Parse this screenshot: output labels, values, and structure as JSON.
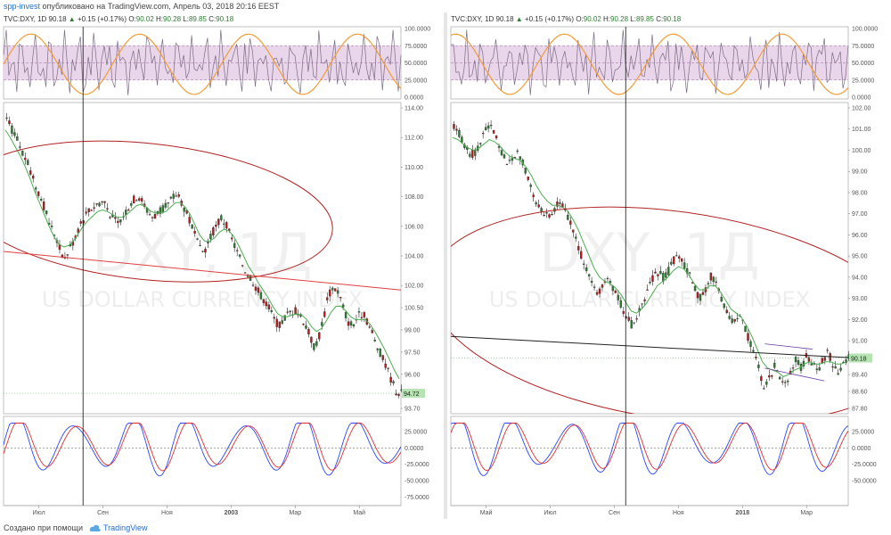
{
  "header": {
    "author": "spp-invest",
    "published_text": "опубликовано на TradingView.com, Апрель 03, 2018 20:16 EEST"
  },
  "footer": {
    "created_with": "Создано при помощи",
    "brand": "TradingView",
    "logo_icon": "tradingview-cloud-icon"
  },
  "chart_data": [
    {
      "type": "candlestick",
      "legend": {
        "symbol": "TVC:DXY, 1D",
        "last": "90.18",
        "change": "+0.15 (+0.17%)",
        "o_label": "O:",
        "o": "90.02",
        "h_label": "H:",
        "h": "90.28",
        "l_label": "L:",
        "l": "89.85",
        "c_label": "C:",
        "c": "90.18"
      },
      "watermark": "DXY, 1Д",
      "watermark_sub": "US DOLLAR CURRENCY INDEX",
      "x_ticks": [
        "Июл",
        "Сен",
        "Ноя",
        "2003",
        "Мар",
        "Май"
      ],
      "y_ticks": [
        "114.00",
        "112.00",
        "110.00",
        "108.00",
        "106.00",
        "104.00",
        "102.00",
        "100.50",
        "99.00",
        "97.50",
        "96.00",
        "93.70"
      ],
      "ylim": [
        93.7,
        114.0
      ],
      "last_price_label": "94.72",
      "price_path": [
        113.2,
        112.6,
        112.0,
        111.2,
        110.5,
        109.6,
        108.7,
        108.0,
        107.0,
        106.0,
        105.4,
        104.4,
        103.8,
        104.6,
        105.2,
        106.1,
        106.6,
        107.1,
        107.4,
        107.6,
        107.7,
        107.0,
        106.4,
        106.2,
        106.8,
        107.3,
        107.8,
        108.1,
        107.6,
        107.0,
        106.6,
        106.9,
        107.1,
        107.4,
        107.9,
        108.2,
        107.6,
        106.8,
        106.0,
        105.0,
        104.2,
        104.6,
        105.4,
        106.0,
        106.6,
        106.1,
        105.3,
        104.5,
        103.7,
        103.0,
        102.6,
        102.0,
        101.4,
        101.0,
        100.4,
        99.6,
        99.3,
        99.8,
        100.2,
        100.3,
        100.1,
        99.6,
        98.8,
        97.9,
        98.4,
        99.8,
        101.3,
        101.9,
        101.6,
        100.6,
        99.6,
        99.3,
        99.9,
        100.1,
        99.6,
        98.7,
        97.9,
        97.2,
        96.4,
        95.6,
        94.8,
        94.72
      ],
      "ma_path": [
        112.5,
        112.0,
        111.4,
        110.8,
        110.1,
        109.3,
        108.4,
        107.6,
        106.8,
        106.0,
        105.3,
        104.8,
        104.6,
        104.7,
        105.0,
        105.5,
        106.0,
        106.4,
        106.7,
        107.0,
        107.1,
        107.0,
        106.8,
        106.6,
        106.6,
        106.8,
        107.1,
        107.4,
        107.5,
        107.3,
        107.0,
        106.9,
        106.9,
        107.0,
        107.3,
        107.6,
        107.6,
        107.3,
        106.8,
        106.1,
        105.4,
        105.0,
        105.0,
        105.2,
        105.6,
        105.8,
        105.7,
        105.3,
        104.7,
        104.0,
        103.3,
        102.8,
        102.2,
        101.7,
        101.2,
        100.6,
        100.1,
        99.9,
        99.9,
        100.0,
        100.1,
        100.0,
        99.7,
        99.2,
        98.9,
        99.1,
        99.6,
        100.2,
        100.6,
        100.6,
        100.3,
        99.9,
        99.7,
        99.7,
        99.7,
        99.4,
        98.9,
        98.3,
        97.7,
        97.0,
        96.3,
        95.7
      ],
      "channel_lines": [
        {
          "x1": 0.0,
          "y1": 104.3,
          "x2": 1.0,
          "y2": 101.7
        }
      ],
      "ellipse": {
        "cx": 0.36,
        "cy": 107.0,
        "rx_frac": 0.47,
        "ry": 4.6,
        "tilt_deg": 6
      },
      "cursor_x_frac": 0.2,
      "rsi": {
        "y_ticks": [
          "100.0000",
          "75.0000",
          "50.0000",
          "25.0000",
          "0.0000"
        ],
        "band": [
          25,
          75
        ]
      },
      "stoch": {
        "y_ticks": [
          "25.0000",
          "0.0000",
          "-25.0000",
          "-50.0000",
          "-75.0000"
        ]
      }
    },
    {
      "type": "candlestick",
      "legend": {
        "symbol": "TVC:DXY, 1D",
        "last": "90.18",
        "change": "+0.15 (+0.17%)",
        "o_label": "O:",
        "o": "90.02",
        "h_label": "H:",
        "h": "90.28",
        "l_label": "L:",
        "l": "89.85",
        "c_label": "C:",
        "c": "90.18"
      },
      "watermark": "DXY, 1Д",
      "watermark_sub": "US DOLLAR CURRENCY INDEX",
      "x_ticks": [
        "Май",
        "Июл",
        "Сен",
        "Ноя",
        "2018",
        "Мар"
      ],
      "y_ticks": [
        "102.00",
        "101.00",
        "100.00",
        "99.00",
        "98.00",
        "97.00",
        "96.00",
        "95.00",
        "94.00",
        "93.00",
        "92.00",
        "91.00",
        "89.40",
        "88.60",
        "87.80"
      ],
      "ylim": [
        87.8,
        102.0
      ],
      "last_price_label": "90.18",
      "price_path": [
        101.2,
        100.8,
        100.2,
        99.7,
        99.9,
        100.4,
        100.9,
        101.1,
        100.6,
        99.9,
        99.4,
        99.5,
        99.9,
        99.5,
        98.8,
        98.0,
        97.4,
        97.0,
        96.9,
        97.2,
        97.6,
        97.3,
        96.6,
        95.9,
        95.2,
        94.5,
        93.8,
        93.2,
        93.5,
        93.9,
        93.6,
        93.1,
        92.6,
        92.0,
        91.7,
        92.2,
        92.9,
        93.5,
        94.0,
        94.3,
        93.9,
        94.4,
        94.9,
        95.0,
        94.5,
        93.9,
        93.3,
        93.0,
        93.6,
        94.1,
        93.6,
        92.9,
        92.3,
        91.9,
        92.3,
        91.8,
        91.1,
        90.4,
        89.6,
        88.8,
        89.2,
        89.8,
        89.3,
        88.9,
        89.5,
        90.1,
        89.7,
        90.3,
        90.0,
        89.6,
        90.0,
        90.5,
        89.9,
        89.4,
        90.0,
        90.18
      ],
      "ma_path": [
        100.6,
        100.5,
        100.3,
        100.1,
        100.0,
        100.1,
        100.3,
        100.5,
        100.4,
        100.2,
        99.9,
        99.7,
        99.6,
        99.5,
        99.2,
        98.8,
        98.3,
        97.9,
        97.6,
        97.4,
        97.4,
        97.3,
        97.1,
        96.7,
        96.2,
        95.6,
        95.0,
        94.4,
        94.0,
        93.8,
        93.7,
        93.5,
        93.2,
        92.8,
        92.4,
        92.3,
        92.5,
        92.8,
        93.2,
        93.6,
        93.8,
        94.0,
        94.3,
        94.5,
        94.4,
        94.1,
        93.7,
        93.4,
        93.4,
        93.6,
        93.6,
        93.3,
        92.9,
        92.5,
        92.3,
        92.1,
        91.7,
        91.2,
        90.6,
        90.0,
        89.7,
        89.6,
        89.5,
        89.3,
        89.4,
        89.6,
        89.7,
        89.9,
        90.0,
        89.9,
        89.9,
        90.0,
        90.0,
        89.9,
        89.9,
        90.0
      ],
      "channel_lines": [
        {
          "x1": 0.0,
          "y1": 91.2,
          "x2": 1.0,
          "y2": 90.2
        },
        {
          "x1": 0.79,
          "y1": 90.85,
          "x2": 0.91,
          "y2": 90.6
        },
        {
          "x1": 0.79,
          "y1": 89.7,
          "x2": 0.94,
          "y2": 89.1
        }
      ],
      "ellipse": {
        "cx": 0.56,
        "cy": 92.2,
        "rx_frac": 0.62,
        "ry": 4.9,
        "tilt_deg": 8
      },
      "cursor_x_frac": 0.44,
      "rsi": {
        "y_ticks": [
          "100.0000",
          "75.0000",
          "50.0000",
          "25.0000",
          "0.0000"
        ],
        "band": [
          25,
          75
        ]
      },
      "stoch": {
        "y_ticks": [
          "25.0000",
          "0.0000",
          "-25.0000",
          "-50.0000"
        ]
      }
    }
  ],
  "colors": {
    "candle_down": "#b71c1c",
    "candle_up": "#2e7d32",
    "ma": "#4caf50",
    "ellipse": "#b22222",
    "rsi_band": "#e9d6ea",
    "rsi_line": "#7b6b85",
    "rsi_slow": "#f39c33",
    "stoch_k": "#2b46ff",
    "stoch_d": "#e03030",
    "price_tag": "#b5e3b1"
  }
}
